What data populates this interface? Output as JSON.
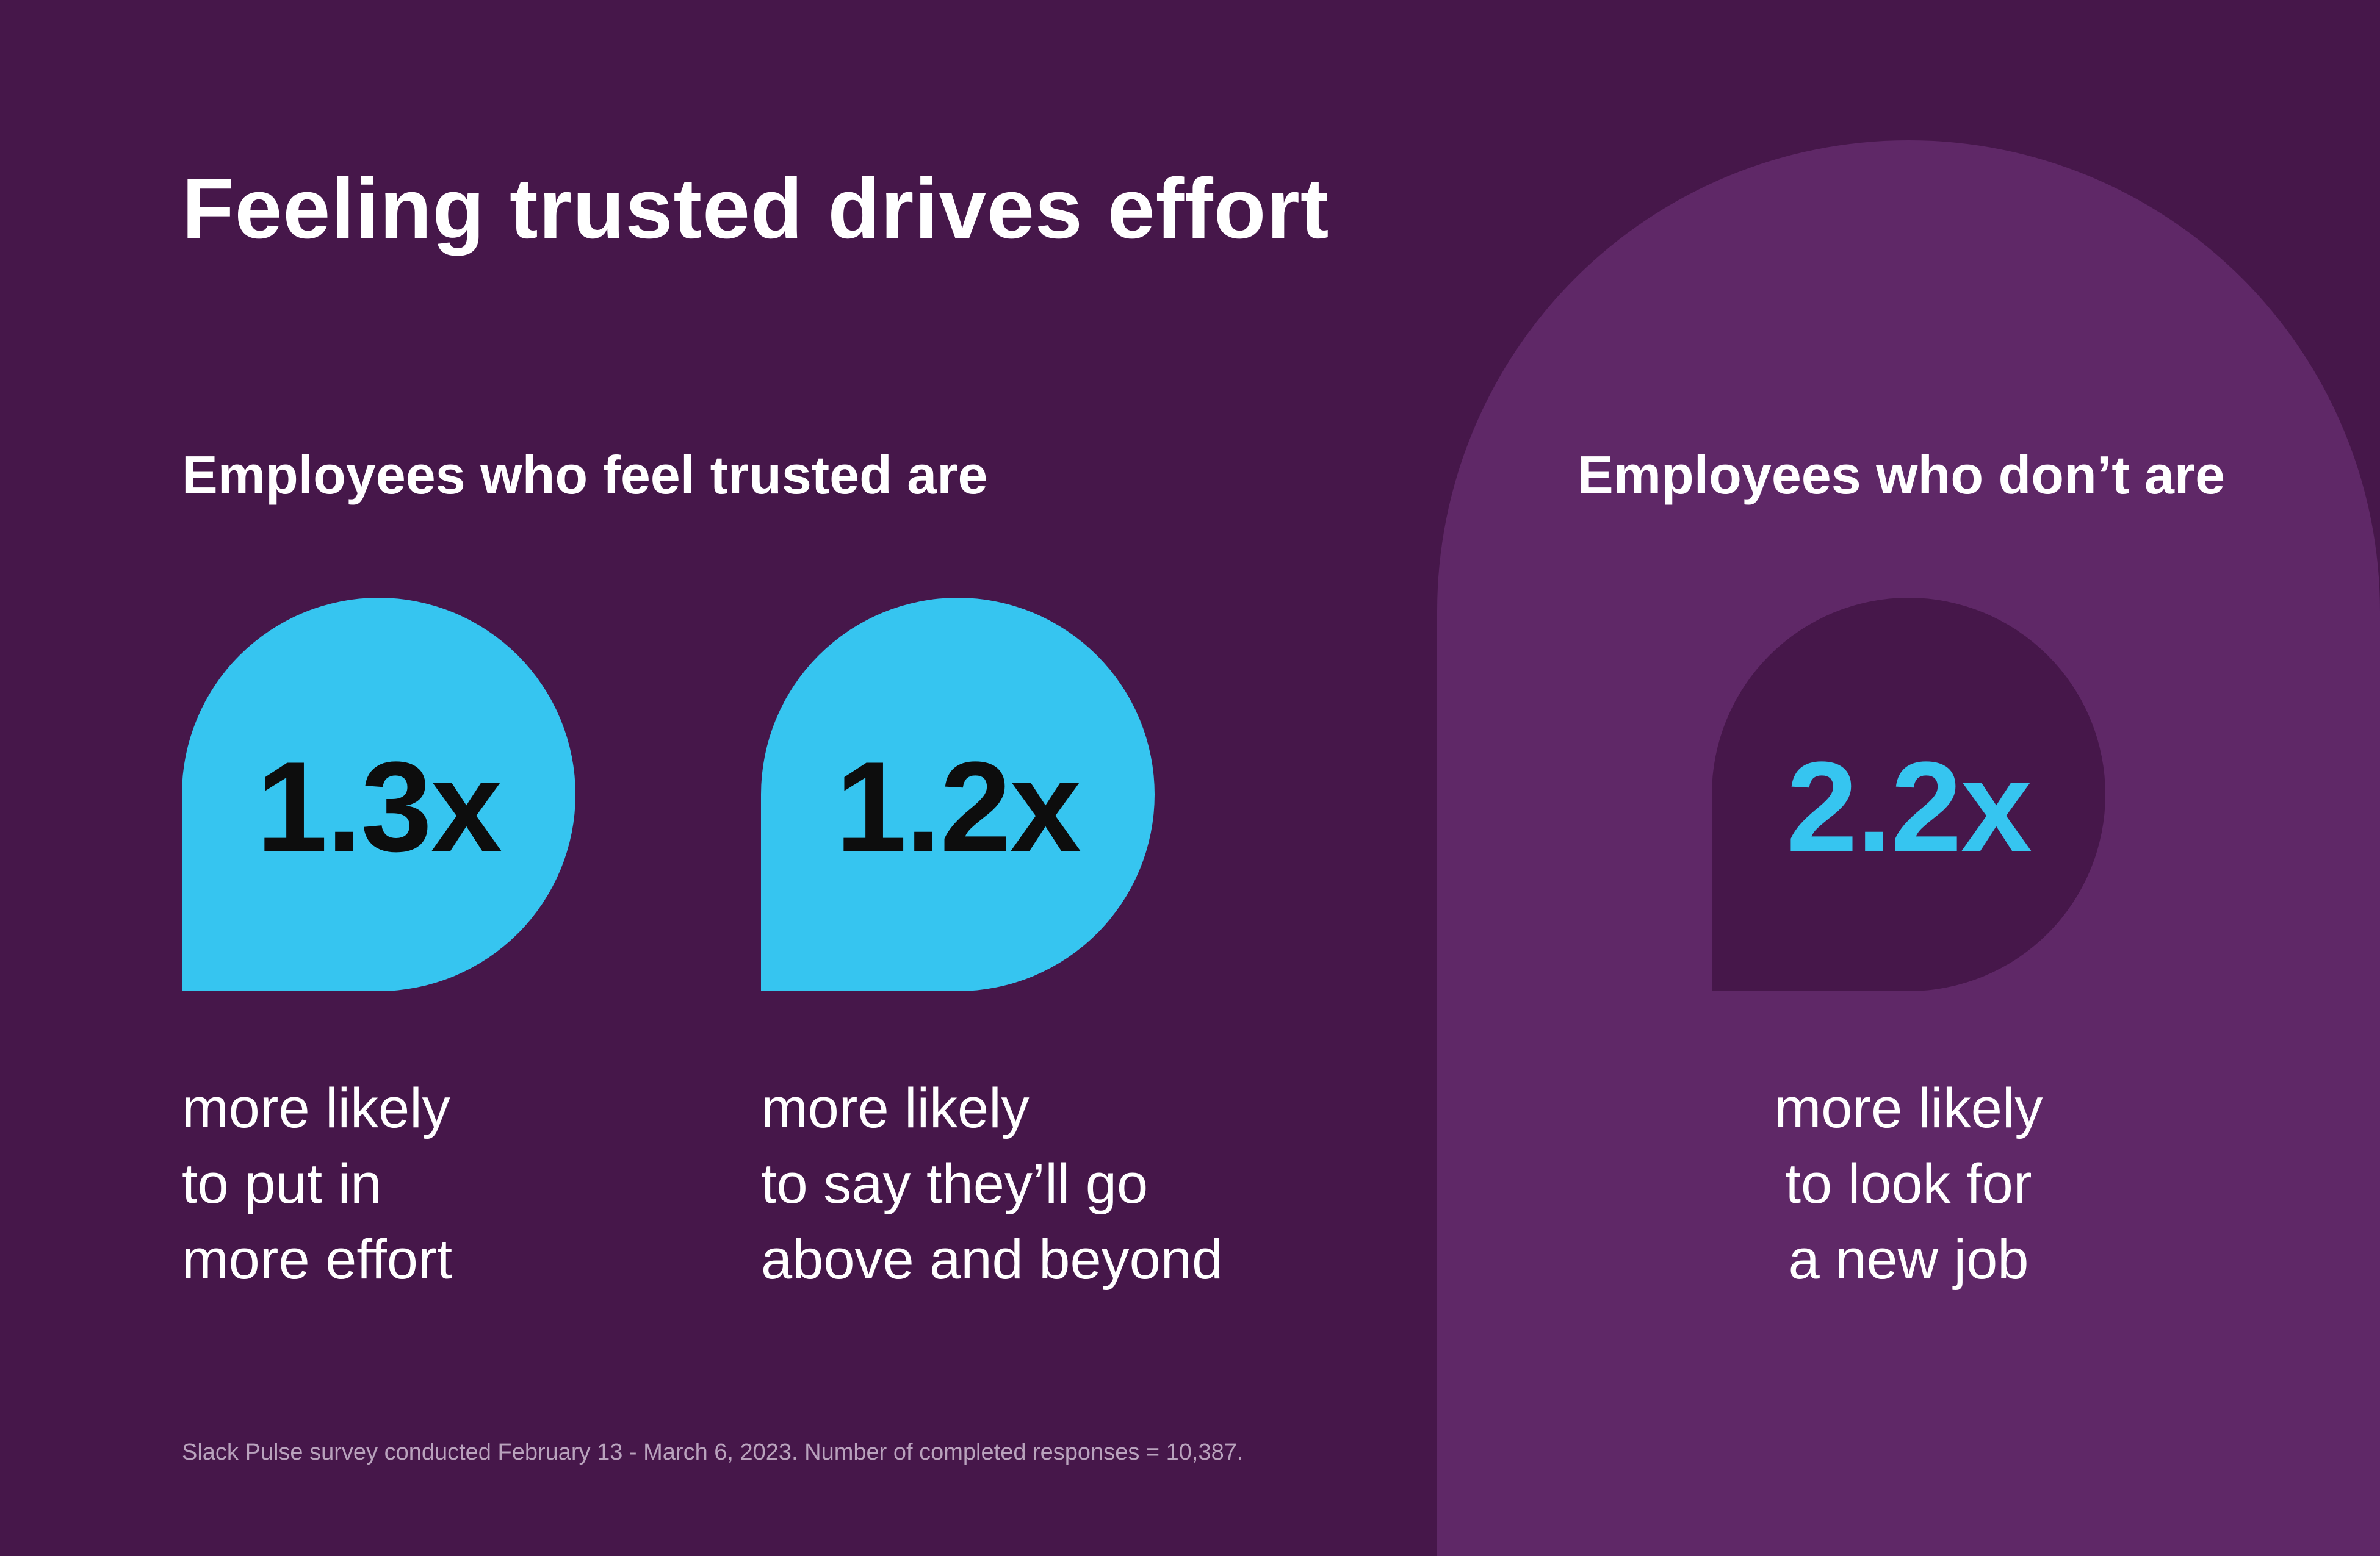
{
  "title": "Feeling trusted drives effort",
  "groups": {
    "trusted": {
      "heading": "Employees who feel trusted are"
    },
    "dont": {
      "heading": "Employees who don’t are"
    }
  },
  "stats": [
    {
      "value_label": "1.3x",
      "lines": [
        "more likely",
        "to put in",
        "more effort"
      ],
      "color": "#36c5f0"
    },
    {
      "value_label": "1.2x",
      "lines": [
        "more likely",
        "to say they’ll go",
        "above and beyond"
      ],
      "color": "#36c5f0"
    },
    {
      "value_label": "2.2x",
      "lines": [
        "more likely",
        "to look for",
        "a new job"
      ],
      "color": "#46174a"
    }
  ],
  "chart_data": {
    "type": "bar",
    "title": "Feeling trusted drives effort",
    "categories": [
      "more likely to put in more effort",
      "more likely to say they’ll go above and beyond",
      "more likely to look for a new job"
    ],
    "series": [
      {
        "name": "Employees who feel trusted are",
        "values": [
          1.3,
          1.2,
          null
        ]
      },
      {
        "name": "Employees who don’t are",
        "values": [
          null,
          null,
          2.2
        ]
      }
    ],
    "unit": "x"
  },
  "footnote": "Slack Pulse survey conducted February 13 - March 6, 2023. Number of completed responses = 10,387.",
  "colors": {
    "background": "#46174a",
    "panel": "#5f2867",
    "accent": "#36c5f0",
    "text": "#ffffff",
    "footnote": "#b9a3bd"
  }
}
